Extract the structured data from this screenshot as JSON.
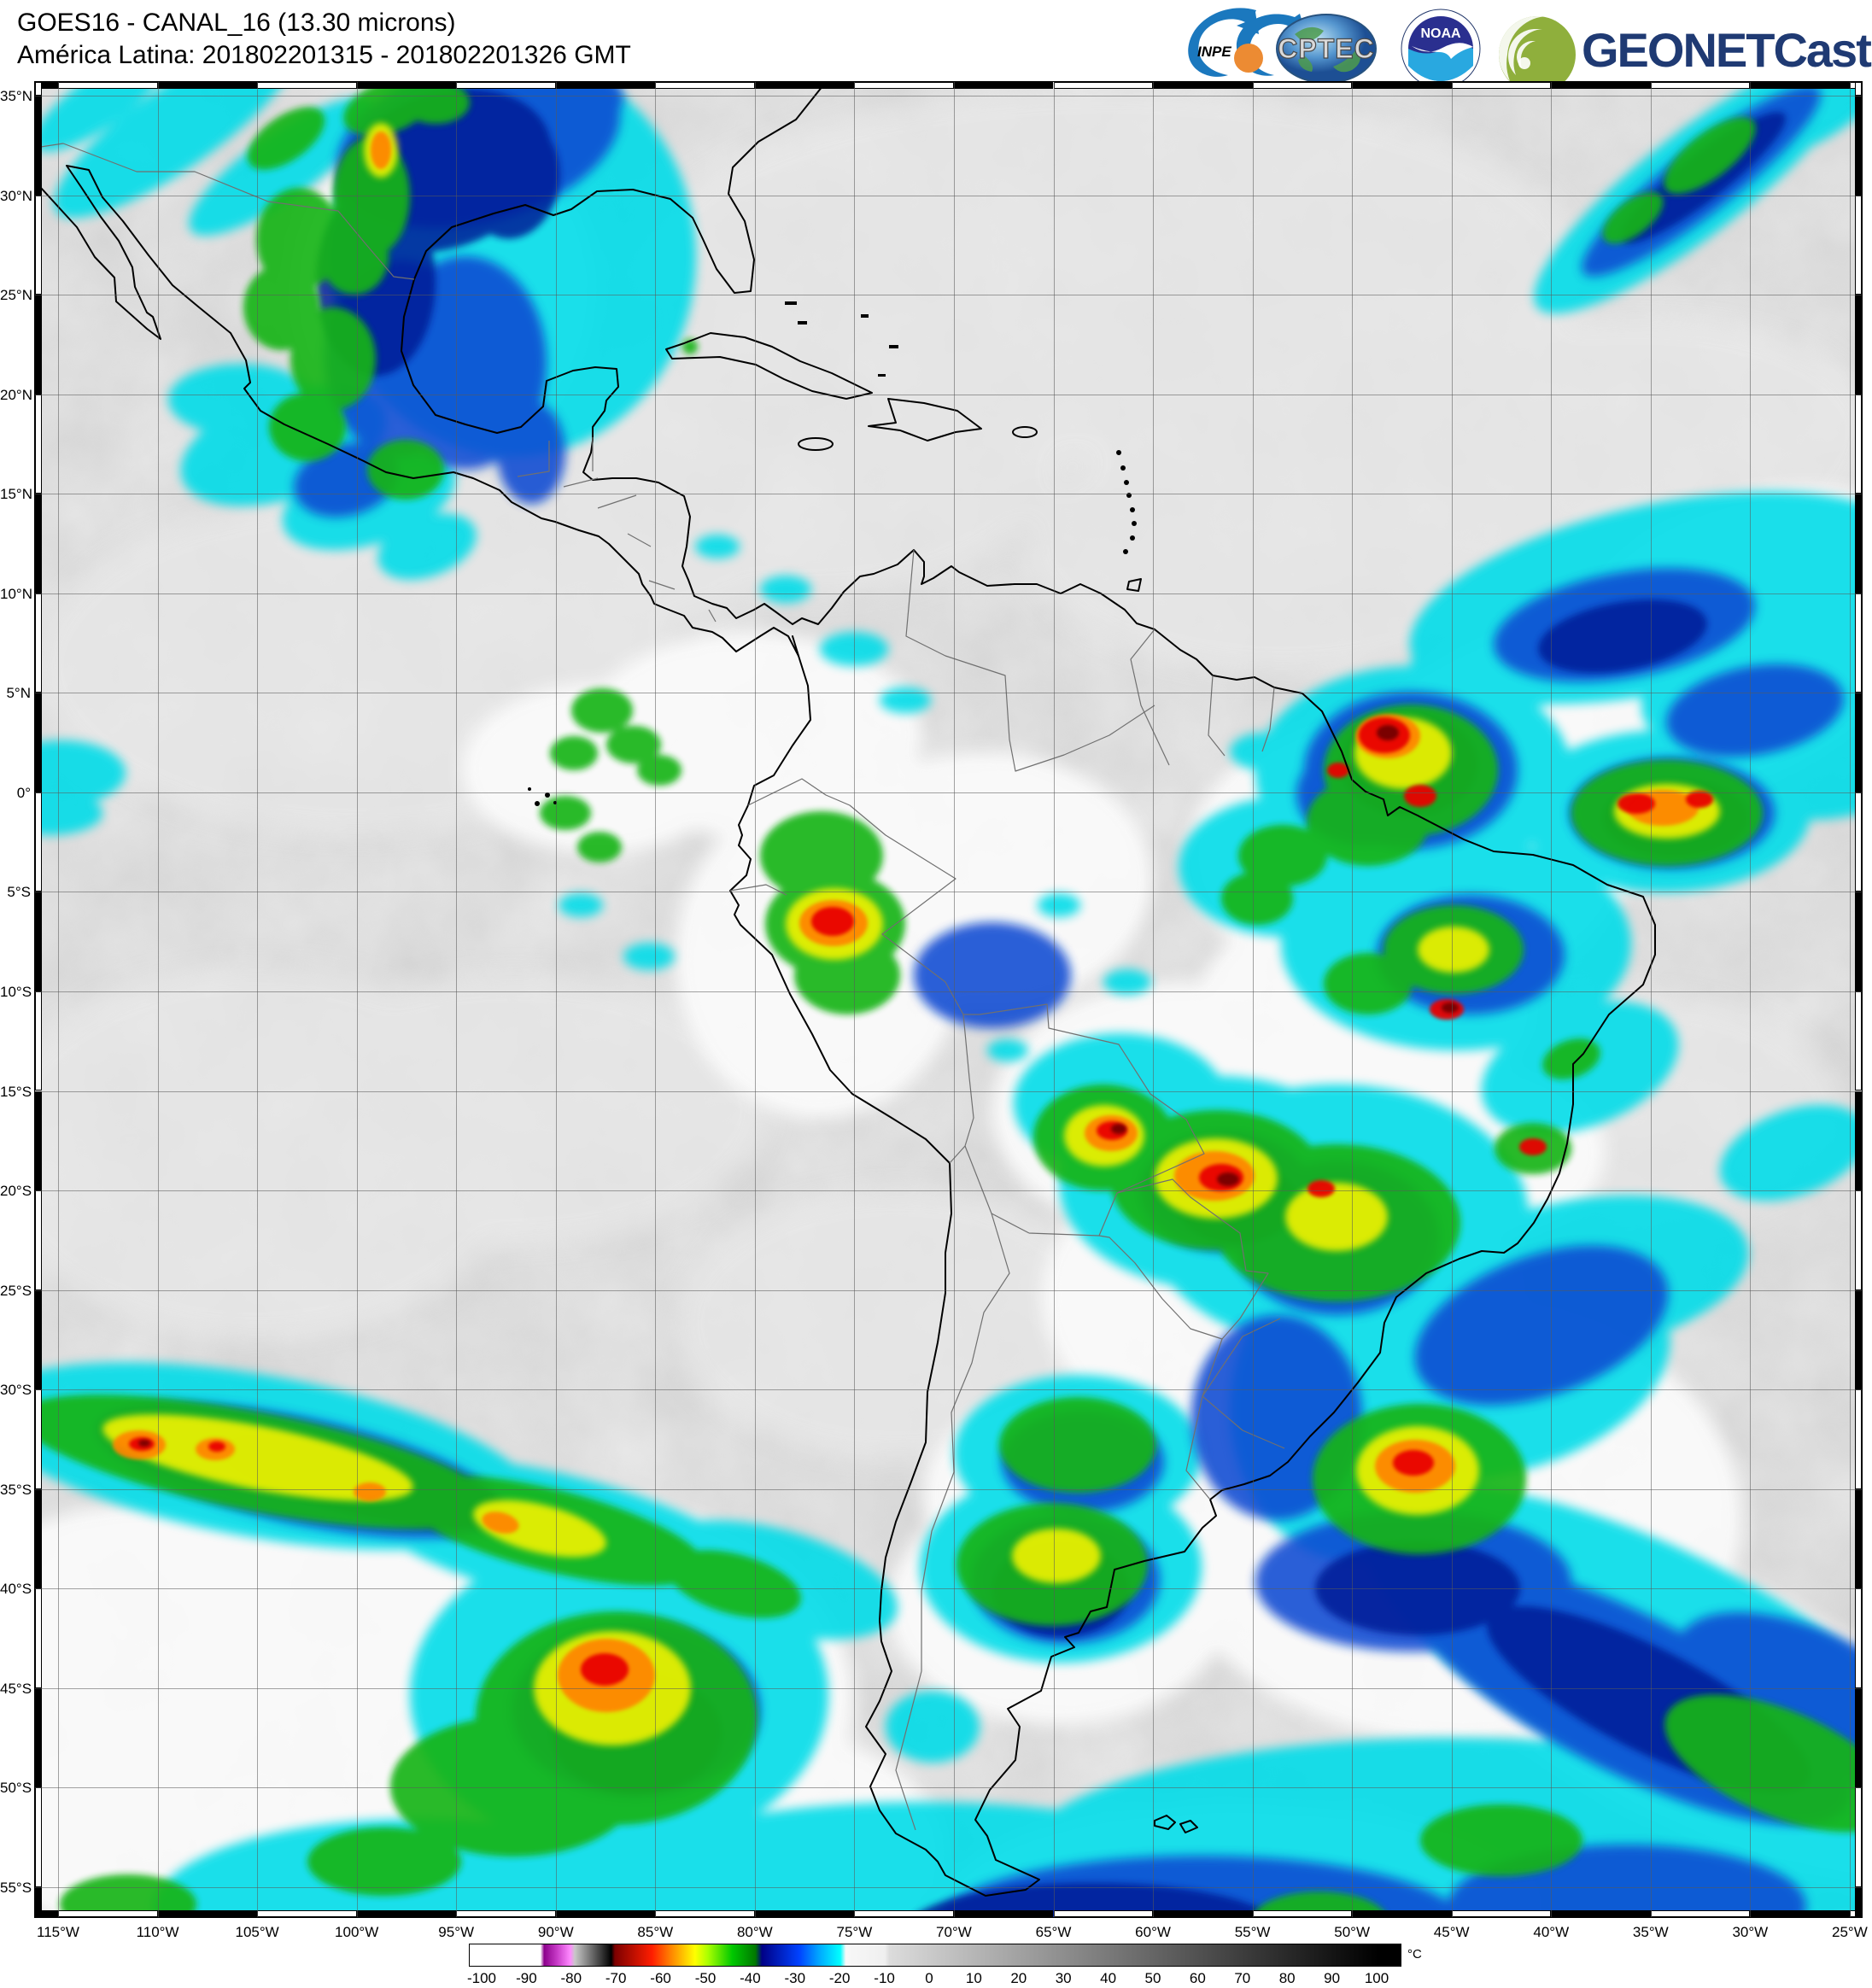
{
  "header": {
    "title_line1": "GOES16 - CANAL_16 (13.30 microns)",
    "title_line2": "América Latina: 201802201315 - 201802201326 GMT"
  },
  "logos": {
    "inpe_label": "INPE",
    "cptec_label": "CPTEC",
    "noaa_label": "NOAA",
    "geonetcast_label": "GEONETCast"
  },
  "map": {
    "lat_labels": [
      "35°N",
      "30°N",
      "25°N",
      "20°N",
      "15°N",
      "10°N",
      "5°N",
      "0°",
      "5°S",
      "10°S",
      "15°S",
      "20°S",
      "25°S",
      "30°S",
      "35°S",
      "40°S",
      "45°S",
      "50°S",
      "55°S"
    ],
    "lon_labels": [
      "115°W",
      "110°W",
      "105°W",
      "100°W",
      "95°W",
      "90°W",
      "85°W",
      "80°W",
      "75°W",
      "70°W",
      "65°W",
      "60°W",
      "55°W",
      "50°W",
      "45°W",
      "40°W",
      "35°W",
      "30°W",
      "25°W"
    ]
  },
  "colorbar": {
    "tick_labels": [
      "-100",
      "-90",
      "-80",
      "-70",
      "-60",
      "-50",
      "-40",
      "-30",
      "-20",
      "-10",
      "0",
      "10",
      "20",
      "30",
      "40",
      "50",
      "60",
      "70",
      "80",
      "90",
      "100"
    ],
    "unit_label": "°C",
    "palette_key_colors": [
      "#ffffff",
      "#c83cc8",
      "#555555",
      "#ff1e00",
      "#ffff00",
      "#00c800",
      "#000086",
      "#00ffff",
      "#f0f0f0",
      "#000000"
    ]
  }
}
